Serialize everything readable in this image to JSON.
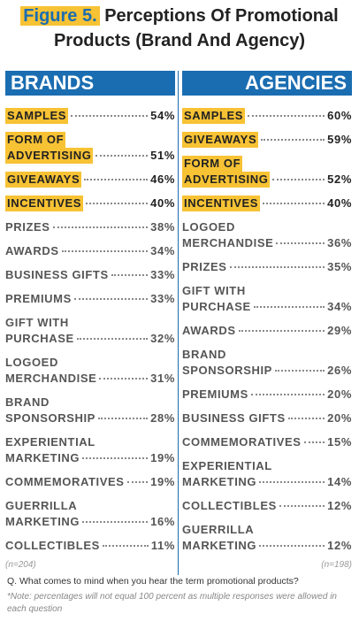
{
  "title": {
    "figure": "Figure 5.",
    "lines": [
      "Perceptions Of Promotional",
      "Products (Brand And Agency)"
    ]
  },
  "columns": [
    {
      "header": "BRANDS",
      "n": "(n=204)",
      "items": [
        {
          "label": [
            "SAMPLES"
          ],
          "value": "54%",
          "highlight": true
        },
        {
          "label": [
            "FORM OF",
            "ADVERTISING"
          ],
          "value": "51%",
          "highlight": true
        },
        {
          "label": [
            "GIVEAWAYS"
          ],
          "value": "46%",
          "highlight": true
        },
        {
          "label": [
            "INCENTIVES"
          ],
          "value": "40%",
          "highlight": true
        },
        {
          "label": [
            "PRIZES"
          ],
          "value": "38%",
          "highlight": false
        },
        {
          "label": [
            "AWARDS"
          ],
          "value": "34%",
          "highlight": false
        },
        {
          "label": [
            "BUSINESS GIFTS"
          ],
          "value": "33%",
          "highlight": false
        },
        {
          "label": [
            "PREMIUMS"
          ],
          "value": "33%",
          "highlight": false
        },
        {
          "label": [
            "GIFT WITH",
            "PURCHASE"
          ],
          "value": "32%",
          "highlight": false
        },
        {
          "label": [
            "LOGOED",
            "MERCHANDISE"
          ],
          "value": "31%",
          "highlight": false
        },
        {
          "label": [
            "BRAND",
            "SPONSORSHIP"
          ],
          "value": "28%",
          "highlight": false
        },
        {
          "label": [
            "EXPERIENTIAL",
            "MARKETING"
          ],
          "value": "19%",
          "highlight": false
        },
        {
          "label": [
            "COMMEMORATIVES"
          ],
          "value": "19%",
          "highlight": false
        },
        {
          "label": [
            "GUERRILLA",
            "MARKETING"
          ],
          "value": "16%",
          "highlight": false
        },
        {
          "label": [
            "COLLECTIBLES"
          ],
          "value": "11%",
          "highlight": false
        }
      ]
    },
    {
      "header": "AGENCIES",
      "n": "(n=198)",
      "items": [
        {
          "label": [
            "SAMPLES"
          ],
          "value": "60%",
          "highlight": true
        },
        {
          "label": [
            "GIVEAWAYS"
          ],
          "value": "59%",
          "highlight": true
        },
        {
          "label": [
            "FORM OF",
            "ADVERTISING"
          ],
          "value": "52%",
          "highlight": true
        },
        {
          "label": [
            "INCENTIVES"
          ],
          "value": "40%",
          "highlight": true
        },
        {
          "label": [
            "LOGOED",
            "MERCHANDISE"
          ],
          "value": "36%",
          "highlight": false
        },
        {
          "label": [
            "PRIZES"
          ],
          "value": "35%",
          "highlight": false
        },
        {
          "label": [
            "GIFT WITH",
            "PURCHASE"
          ],
          "value": "34%",
          "highlight": false
        },
        {
          "label": [
            "AWARDS"
          ],
          "value": "29%",
          "highlight": false
        },
        {
          "label": [
            "BRAND",
            "SPONSORSHIP"
          ],
          "value": "26%",
          "highlight": false
        },
        {
          "label": [
            "PREMIUMS"
          ],
          "value": "20%",
          "highlight": false
        },
        {
          "label": [
            "BUSINESS GIFTS"
          ],
          "value": "20%",
          "highlight": false
        },
        {
          "label": [
            "COMMEMORATIVES"
          ],
          "value": "15%",
          "highlight": false
        },
        {
          "label": [
            "EXPERIENTIAL",
            "MARKETING"
          ],
          "value": "14%",
          "highlight": false
        },
        {
          "label": [
            "COLLECTIBLES"
          ],
          "value": "12%",
          "highlight": false
        },
        {
          "label": [
            "GUERRILLA",
            "MARKETING"
          ],
          "value": "12%",
          "highlight": false
        }
      ]
    }
  ],
  "question": "Q. What comes to mind when you hear the term promotional products?",
  "note": "*Note: percentages will not equal 100 percent as multiple responses were allowed in each question"
}
